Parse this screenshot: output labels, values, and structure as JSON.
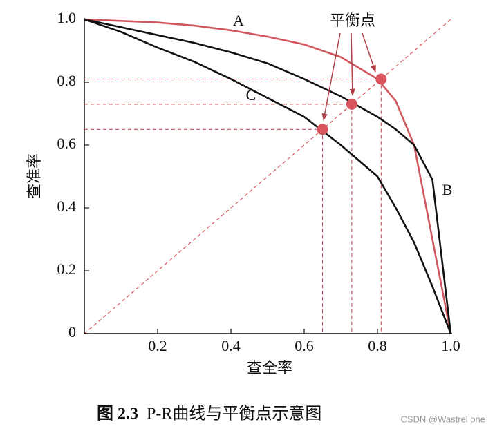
{
  "chart_data": {
    "type": "line",
    "x_label": "查全率",
    "y_label": "查准率",
    "caption_number": "图 2.3",
    "caption_text": "P-R曲线与平衡点示意图",
    "annotation": "平衡点",
    "watermark": "CSDN @Wastrel one",
    "x": [
      0,
      0.1,
      0.2,
      0.3,
      0.4,
      0.5,
      0.6,
      0.7,
      0.8,
      0.85,
      0.9,
      0.95,
      1.0
    ],
    "series": [
      {
        "name": "A",
        "color": "#d0575e",
        "values": [
          1.0,
          0.995,
          0.99,
          0.98,
          0.965,
          0.945,
          0.92,
          0.88,
          0.81,
          0.74,
          0.6,
          0.3,
          0
        ]
      },
      {
        "name": "B",
        "color": "#111111",
        "values": [
          1.0,
          0.975,
          0.95,
          0.925,
          0.895,
          0.86,
          0.81,
          0.755,
          0.69,
          0.65,
          0.6,
          0.49,
          0
        ]
      },
      {
        "name": "C",
        "color": "#111111",
        "values": [
          1.0,
          0.96,
          0.91,
          0.865,
          0.81,
          0.75,
          0.69,
          0.6,
          0.5,
          0.4,
          0.29,
          0.15,
          0
        ]
      }
    ],
    "break_even": {
      "color": "#d9545c",
      "x": [
        0.81,
        0.73,
        0.65
      ],
      "y": [
        0.81,
        0.73,
        0.65
      ]
    },
    "xlim": [
      0,
      1
    ],
    "ylim": [
      0,
      1
    ],
    "xticks": [
      0.2,
      0.4,
      0.6,
      0.8,
      {
        "value": 1,
        "label": "1.0"
      }
    ],
    "yticks": [
      0,
      0.2,
      0.4,
      0.6,
      0.8,
      {
        "value": 1,
        "label": "1.0"
      }
    ]
  }
}
